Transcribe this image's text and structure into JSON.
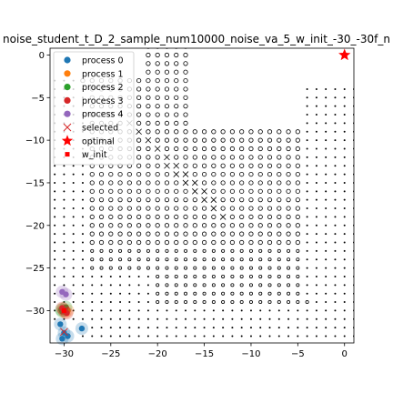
{
  "chart_data": {
    "type": "scatter",
    "title": "noise_student_t_D_2_sample_num10000_noise_va_5_w_init_-30_-30f_n",
    "xlabel": "",
    "ylabel": "",
    "xlim": [
      -31.5,
      1.0
    ],
    "ylim": [
      -33.8,
      0.8
    ],
    "xticks": [
      -30,
      -25,
      -20,
      -15,
      -10,
      -5,
      0
    ],
    "yticks": [
      0,
      -5,
      -10,
      -15,
      -20,
      -25,
      -30
    ],
    "xtick_labels": [
      "−30",
      "−25",
      "−20",
      "−15",
      "−10",
      "−5",
      "0"
    ],
    "ytick_labels": [
      "0",
      "−5",
      "−10",
      "−15",
      "−20",
      "−25",
      "−30"
    ],
    "grid": false,
    "legend_position": "upper-left",
    "background": {
      "description_markers": "grid of small black open circles and dots marking sampled points, with a zig-zag boundary band",
      "grid_step": 1
    },
    "series": [
      {
        "name": "process 0",
        "color": "#1f77b4",
        "marker": "circle",
        "points": [
          [
            -30.2,
            -33.3
          ],
          [
            -29.6,
            -33.0
          ],
          [
            -30.0,
            -32.6
          ],
          [
            -28.1,
            -32.1
          ],
          [
            -30.4,
            -31.6
          ]
        ]
      },
      {
        "name": "process 1",
        "color": "#ff7f0e",
        "marker": "circle",
        "points": [
          [
            -29.9,
            -30.2
          ],
          [
            -29.6,
            -30.0
          ],
          [
            -30.1,
            -29.8
          ]
        ]
      },
      {
        "name": "process 2",
        "color": "#2ca02c",
        "marker": "circle",
        "points": [
          [
            -30.2,
            -30.1
          ],
          [
            -29.8,
            -29.6
          ],
          [
            -30.3,
            -29.9
          ]
        ]
      },
      {
        "name": "process 3",
        "color": "#d62728",
        "marker": "circle",
        "points": [
          [
            -30.0,
            -30.0
          ],
          [
            -29.7,
            -30.3
          ],
          [
            -30.2,
            -29.7
          ]
        ]
      },
      {
        "name": "process 4",
        "color": "#9467bd",
        "marker": "circle",
        "points": [
          [
            -29.8,
            -28.1
          ],
          [
            -30.2,
            -27.8
          ]
        ]
      }
    ],
    "selected": {
      "name": "selected",
      "color": "#d62728",
      "marker": "x",
      "points": [
        [
          -30.0,
          -32.5
        ],
        [
          -29.9,
          -30.0
        ]
      ]
    },
    "optimal": {
      "name": "optimal",
      "color": "#ff0000",
      "marker": "star",
      "points": [
        [
          0,
          0
        ]
      ]
    },
    "w_init": {
      "name": "w_init",
      "color": "#ff0000",
      "marker": "square",
      "points": [
        [
          -30,
          -30
        ]
      ]
    },
    "legend": [
      "process 0",
      "process 1",
      "process 2",
      "process 3",
      "process 4",
      "selected",
      "optimal",
      "w_init"
    ]
  }
}
